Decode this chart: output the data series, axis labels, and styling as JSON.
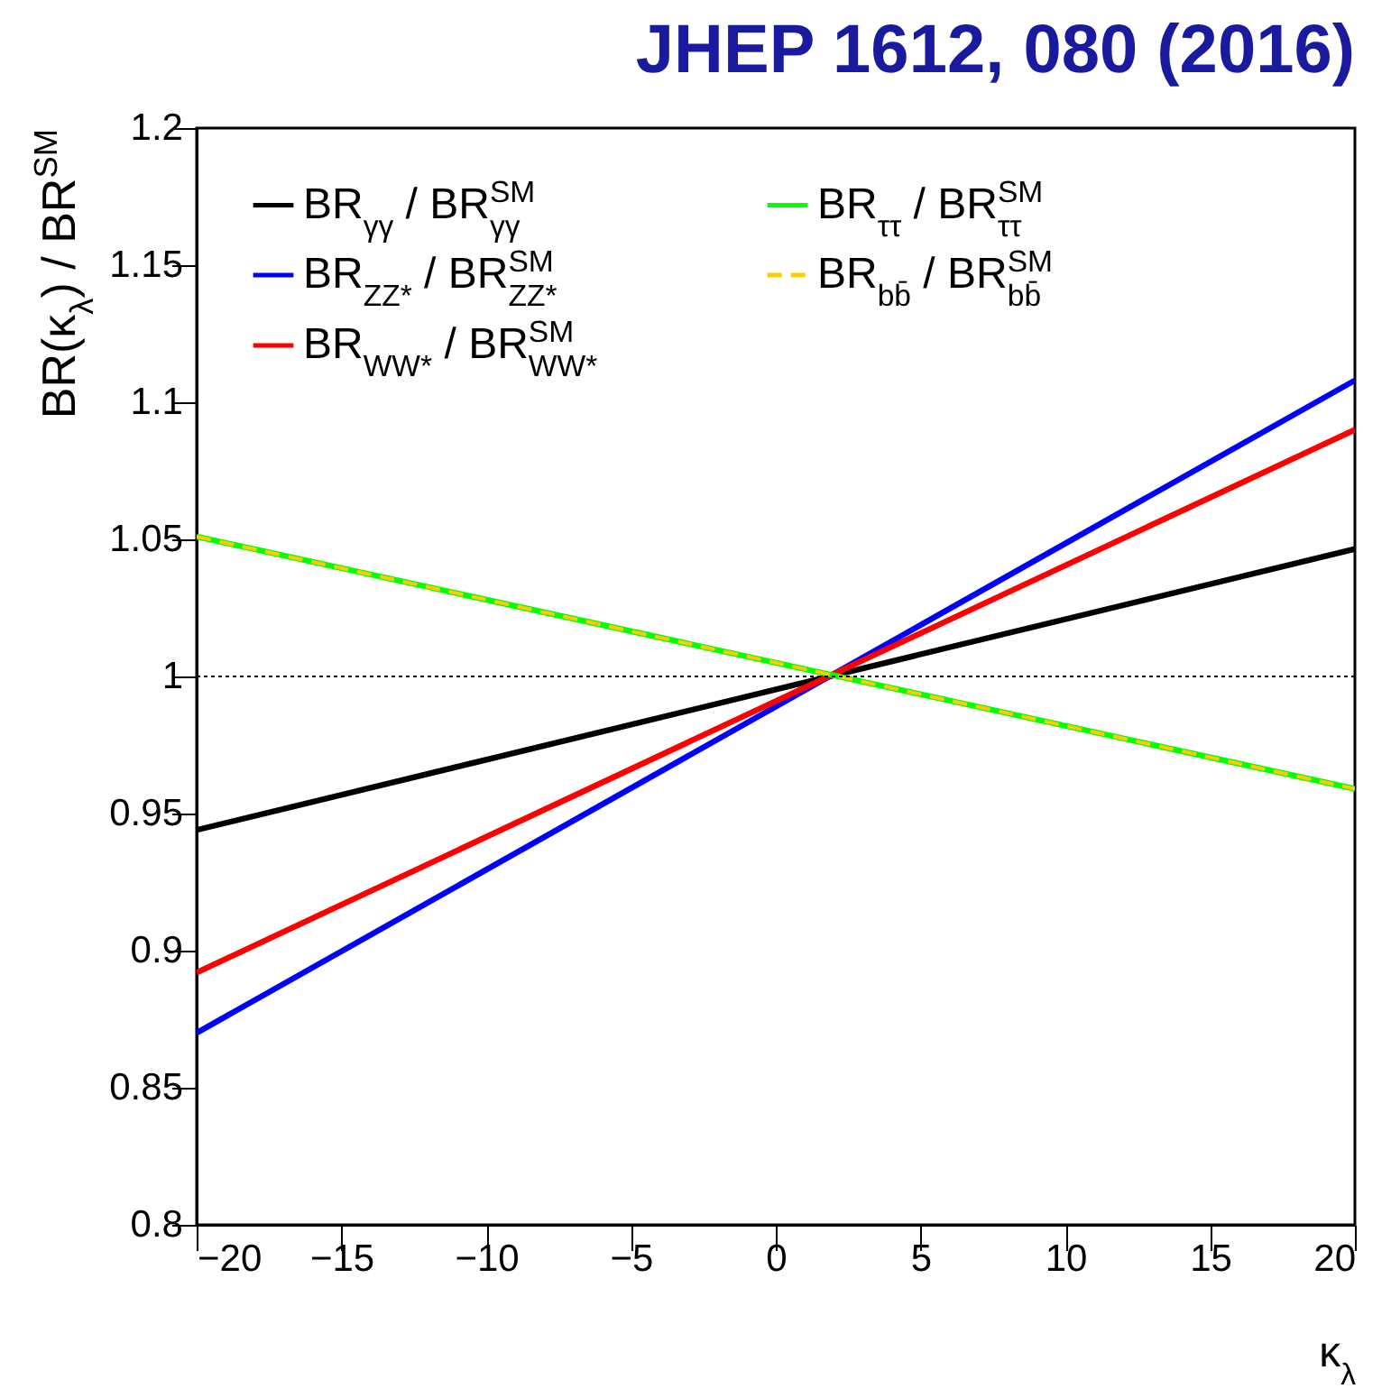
{
  "chart_data": {
    "type": "line",
    "title": "JHEP 1612, 080 (2016)",
    "xlabel": "κ$_{λ}$",
    "ylabel": "BR(κ$_{λ}$) / BR$^{SM}$",
    "x": [
      -20,
      20
    ],
    "series": [
      {
        "name": "BR$_{γγ}$ / BR$^{SM}$$_{γγ}$",
        "color": "#000000",
        "values": [
          0.944,
          1.0465
        ]
      },
      {
        "name": "BR$_{ZZ*}$ / BR$^{SM}$$_{ZZ*}$",
        "color": "#0000ff",
        "values": [
          0.87,
          1.108
        ]
      },
      {
        "name": "BR$_{WW*}$ / BR$^{SM}$$_{WW*}$",
        "color": "#ff0000",
        "values": [
          0.892,
          1.09
        ]
      },
      {
        "name": "BR$_{ττ}$ / BR$^{SM}$$_{ττ}$",
        "color": "#00ff00",
        "values": [
          1.051,
          0.959
        ]
      },
      {
        "name": "BR$_{bb̄}$ / BR$^{SM}$$_{bb̄}$",
        "color": "#ffcc00",
        "values": [
          1.051,
          0.959
        ],
        "line_style": "dashed"
      }
    ],
    "xlim": [
      -20,
      20
    ],
    "xticks": [
      -20,
      -15,
      -10,
      -5,
      0,
      5,
      10,
      15,
      20
    ],
    "ylim": [
      0.8,
      1.2
    ],
    "yticks": [
      0.8,
      0.85,
      0.9,
      0.95,
      1,
      1.05,
      1.1,
      1.15,
      1.2
    ],
    "ref_lines": [
      {
        "axis": "y",
        "value": 1,
        "line_style": "dotted",
        "color": "#000000"
      }
    ],
    "grid": false,
    "legend": "top left",
    "marker": "none"
  }
}
